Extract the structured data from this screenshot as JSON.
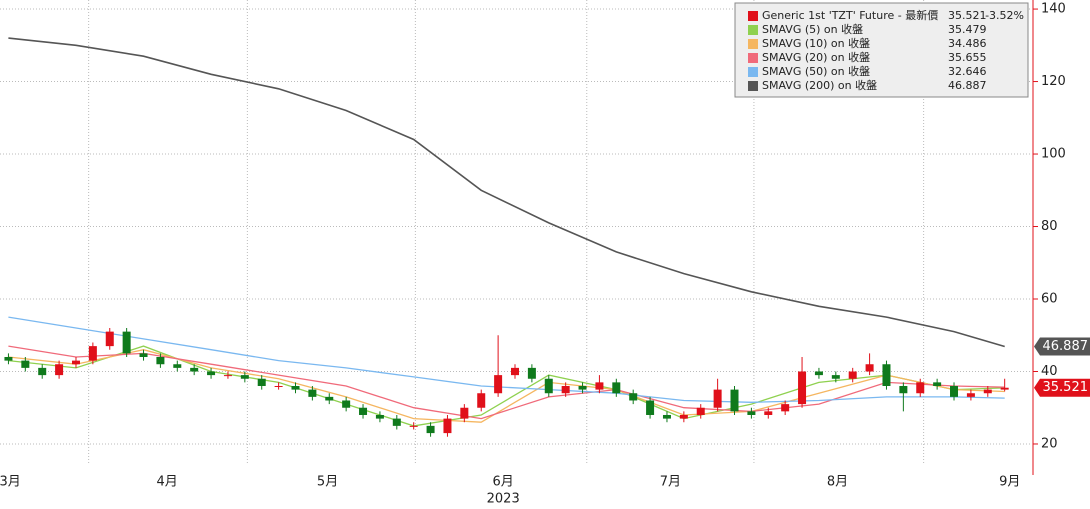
{
  "chart_data": {
    "type": "candlestick",
    "categories": [
      null,
      null,
      null,
      null,
      null,
      null,
      null,
      null,
      null,
      null,
      null,
      null,
      null,
      null,
      null,
      null,
      null,
      null,
      null,
      null,
      null,
      null,
      null,
      null,
      null,
      null,
      null,
      null,
      null,
      null,
      null,
      null,
      null,
      null,
      null,
      null,
      null,
      null,
      null,
      null,
      null,
      null,
      null,
      null,
      null,
      null,
      null,
      null,
      null,
      null,
      null,
      null,
      null,
      null,
      null,
      null,
      null,
      null,
      null,
      null
    ],
    "series": [
      {
        "name": "Generic 1st 'TZT' Future - 最新價",
        "color": "#e0101a",
        "up_color": "#e0101a",
        "down_color": "#0f7a1c",
        "open": [
          44,
          43,
          41,
          39,
          42,
          43,
          47,
          51,
          45,
          44,
          42,
          41,
          40,
          39,
          39,
          38,
          36,
          36,
          35,
          33,
          32,
          30,
          28,
          27,
          25,
          25,
          23,
          27,
          30,
          34,
          39,
          41,
          38,
          34,
          36,
          35,
          37,
          34,
          32,
          28,
          27,
          28,
          30,
          35,
          29,
          28,
          29,
          31,
          40,
          39,
          38,
          40,
          42,
          36,
          34,
          37,
          36,
          33,
          34,
          35
        ],
        "high": [
          45,
          44,
          42,
          43,
          44,
          48,
          52,
          52,
          46,
          45,
          43,
          42,
          41,
          40,
          40,
          39,
          37,
          37,
          36,
          34,
          33,
          31,
          29,
          28,
          26,
          26,
          28,
          31,
          35,
          50,
          42,
          42,
          39,
          37,
          37,
          39,
          38,
          35,
          33,
          29,
          29,
          31,
          38,
          36,
          30,
          30,
          32,
          44,
          41,
          40,
          41,
          45,
          43,
          37,
          38,
          38,
          37,
          35,
          36,
          38
        ],
        "low": [
          42,
          40,
          38,
          38,
          41,
          42,
          46,
          44,
          43,
          41,
          40,
          39,
          38,
          38,
          37,
          35,
          35,
          34,
          32,
          31,
          29,
          27,
          26,
          24,
          24,
          22,
          22,
          26,
          29,
          33,
          38,
          37,
          33,
          33,
          34,
          34,
          33,
          31,
          27,
          26,
          26,
          27,
          29,
          28,
          27,
          27,
          28,
          30,
          38,
          37,
          37,
          39,
          35,
          29,
          33,
          35,
          32,
          32,
          33,
          34.5
        ],
        "close": [
          43,
          41,
          39,
          42,
          43,
          47,
          51,
          45,
          44,
          42,
          41,
          40,
          39,
          39,
          38,
          36,
          36,
          35,
          33,
          32,
          30,
          28,
          27,
          25,
          25,
          23,
          27,
          30,
          34,
          39,
          41,
          38,
          34,
          36,
          35,
          37,
          34,
          32,
          28,
          27,
          28,
          30,
          35,
          29,
          28,
          29,
          31,
          40,
          39,
          38,
          40,
          42,
          36,
          34,
          37,
          36,
          33,
          34,
          35,
          35.521
        ],
        "change": {
          "value": -3.52,
          "label": "-3.52%"
        }
      }
    ],
    "ma_series": [
      {
        "name": "SMAVG (5)  on 收盤",
        "color": "#8fd14f",
        "x": [
          0,
          4,
          8,
          12,
          16,
          20,
          24,
          28,
          32,
          36,
          40,
          44,
          48,
          52,
          56,
          59
        ],
        "values": [
          43,
          41,
          47,
          40,
          37,
          31,
          25,
          28,
          39,
          35,
          27,
          31,
          37,
          39,
          35,
          35.479
        ]
      },
      {
        "name": "SMAVG (10)  on 收盤",
        "color": "#f5b660",
        "x": [
          0,
          4,
          8,
          12,
          16,
          20,
          24,
          28,
          32,
          36,
          40,
          44,
          48,
          52,
          56,
          59
        ],
        "values": [
          44,
          42,
          46,
          41,
          38,
          33,
          27,
          26,
          37,
          35,
          28,
          29,
          34,
          39,
          35,
          34.486
        ]
      },
      {
        "name": "SMAVG (20)  on 收盤",
        "color": "#f06a7a",
        "x": [
          0,
          4,
          8,
          12,
          16,
          20,
          24,
          28,
          32,
          36,
          40,
          44,
          48,
          52,
          56,
          59
        ],
        "values": [
          47,
          44,
          45,
          42,
          39,
          36,
          30,
          27,
          33,
          35,
          30,
          29,
          31,
          37,
          36,
          35.655
        ]
      },
      {
        "name": "SMAVG (50)  on 收盤",
        "color": "#7ab8f0",
        "x": [
          0,
          4,
          8,
          12,
          16,
          20,
          24,
          28,
          32,
          36,
          40,
          44,
          48,
          52,
          56,
          59
        ],
        "values": [
          55,
          52,
          49,
          46,
          43,
          41,
          38.5,
          36,
          35,
          34,
          32,
          31.5,
          32,
          33,
          33,
          32.646
        ]
      },
      {
        "name": "SMAVG (200)  on 收盤",
        "color": "#555555",
        "x": [
          0,
          4,
          8,
          12,
          16,
          20,
          24,
          28,
          32,
          36,
          40,
          44,
          48,
          52,
          56,
          59
        ],
        "values": [
          132,
          130,
          127,
          122,
          118,
          112,
          104,
          90,
          81,
          73,
          67,
          62,
          58,
          55,
          51,
          46.887
        ]
      }
    ],
    "xlim": [
      -0.5,
      60.5
    ],
    "xticks": [
      {
        "value": 0.1,
        "label": "3月"
      },
      {
        "value": 9.4,
        "label": "4月"
      },
      {
        "value": 18.9,
        "label": "5月"
      },
      {
        "value": 29.3,
        "label": "6月"
      },
      {
        "value": 39.2,
        "label": "7月"
      },
      {
        "value": 49.1,
        "label": "8月"
      },
      {
        "value": 59.3,
        "label": "9月"
      }
    ],
    "year_label": "2023",
    "ylim": [
      14.2,
      142.5
    ],
    "yticks": [
      20,
      40,
      60,
      80,
      100,
      120,
      140
    ],
    "y_axis_side": "right",
    "grid": true
  }
}
